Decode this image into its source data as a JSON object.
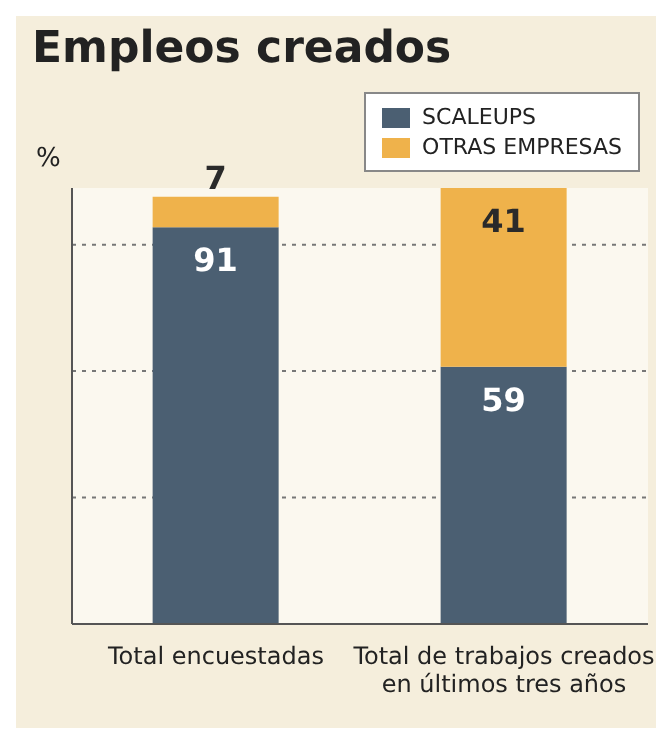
{
  "chart_data": {
    "type": "bar",
    "title": "Empleos creados",
    "ylabel": "%",
    "categories": [
      "Total encuestadas",
      "Total de trabajos creados en últimos tres años"
    ],
    "series": [
      {
        "name": "SCALEUPS",
        "color": "#4b5f72",
        "values": [
          91,
          59
        ]
      },
      {
        "name": "OTRAS EMPRESAS",
        "color": "#efb24b",
        "values": [
          7,
          41
        ]
      }
    ],
    "stacked": true,
    "data_labels": true,
    "ylim": [
      0,
      100
    ],
    "yticks": [
      {
        "value": 0,
        "label": null
      },
      {
        "value": 29,
        "label": null
      },
      {
        "value": 58,
        "label": null
      },
      {
        "value": 87,
        "label": null
      }
    ],
    "grid": "y",
    "legend": "top right",
    "tick_labels": "x"
  }
}
